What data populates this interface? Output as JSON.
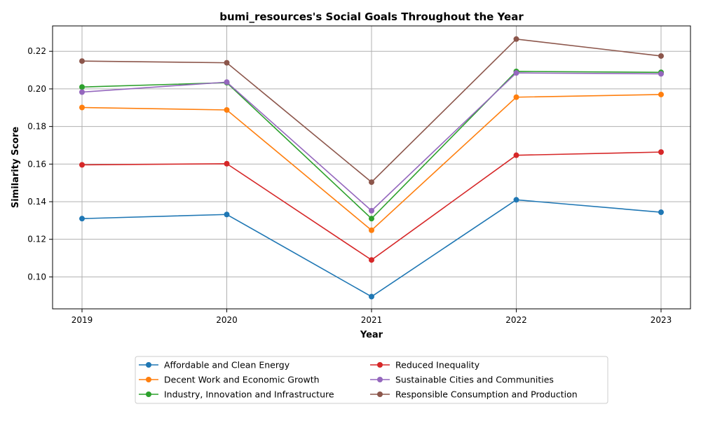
{
  "chart_data": {
    "type": "line",
    "title": "bumi_resources's Social Goals Throughout the Year",
    "xlabel": "Year",
    "ylabel": "Similarity Score",
    "x": [
      "2019",
      "2020",
      "2021",
      "2022",
      "2023"
    ],
    "ylim": [
      0.083,
      0.2335
    ],
    "yticks": [
      0.1,
      0.12,
      0.14,
      0.16,
      0.18,
      0.2,
      0.22
    ],
    "ytick_labels": [
      "0.10",
      "0.12",
      "0.14",
      "0.16",
      "0.18",
      "0.20",
      "0.22"
    ],
    "grid": true,
    "legend_position": "bottom-center",
    "legend_columns": 2,
    "series": [
      {
        "name": "Affordable and Clean Energy",
        "color": "#1f77b4",
        "values": [
          0.131,
          0.1332,
          0.0895,
          0.141,
          0.1344
        ]
      },
      {
        "name": "Decent Work and Economic Growth",
        "color": "#ff7f0e",
        "values": [
          0.1901,
          0.1888,
          0.1248,
          0.1956,
          0.197
        ]
      },
      {
        "name": "Industry, Innovation and Infrastructure",
        "color": "#2ca02c",
        "values": [
          0.201,
          0.2033,
          0.131,
          0.2093,
          0.2088
        ]
      },
      {
        "name": "Reduced Inequality",
        "color": "#d62728",
        "values": [
          0.1596,
          0.1602,
          0.109,
          0.1647,
          0.1664
        ]
      },
      {
        "name": "Sustainable Cities and Communities",
        "color": "#9467bd",
        "values": [
          0.1983,
          0.2036,
          0.1352,
          0.2085,
          0.208
        ]
      },
      {
        "name": "Responsible Consumption and Production",
        "color": "#8c564b",
        "values": [
          0.2148,
          0.2139,
          0.1504,
          0.2265,
          0.2175
        ]
      }
    ]
  }
}
